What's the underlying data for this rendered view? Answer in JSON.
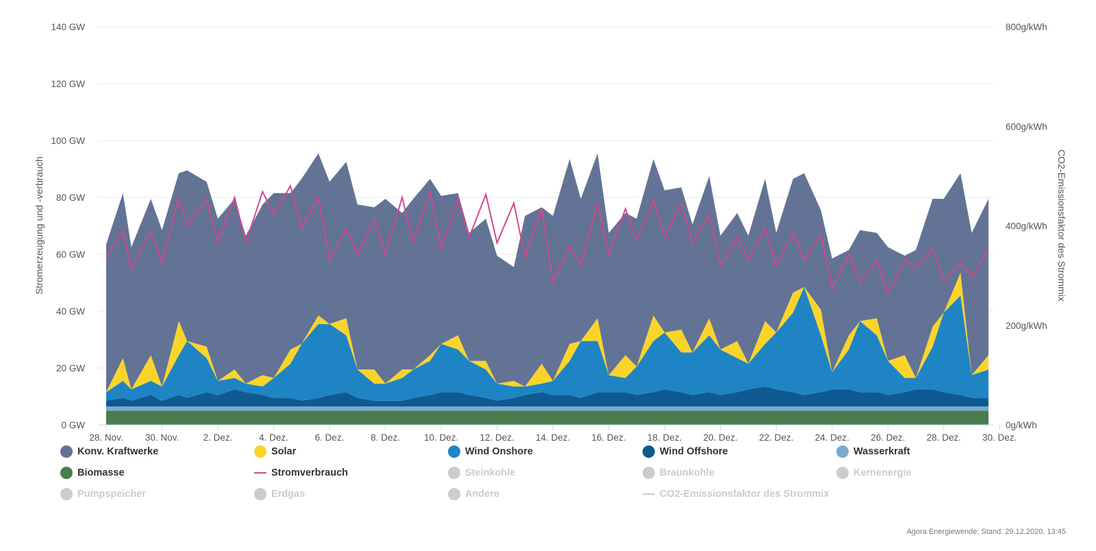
{
  "chart_data": {
    "type": "area",
    "title": "",
    "ylabel": "Stromerzeugung und -verbrauch",
    "ylabel_right": "CO2-Emissionsfaktor des Strommix",
    "ylim": [
      0,
      140
    ],
    "ylim_right": [
      0,
      800
    ],
    "yticks": [
      "0 GW",
      "20 GW",
      "40 GW",
      "60 GW",
      "80 GW",
      "100 GW",
      "120 GW",
      "140 GW"
    ],
    "yticks_right": [
      "0g/kWh",
      "200g/kWh",
      "400g/kWh",
      "600g/kWh",
      "800g/kWh"
    ],
    "grid": true,
    "legend_position": "bottom",
    "xticks": [
      "28. Nov.",
      "30. Nov.",
      "2. Dez.",
      "4. Dez.",
      "6. Dez.",
      "8. Dez.",
      "10. Dez.",
      "12. Dez.",
      "14. Dez.",
      "16. Dez.",
      "18. Dez.",
      "20. Dez.",
      "22. Dez.",
      "24. Dez.",
      "26. Dez.",
      "28. Dez.",
      "30. Dez."
    ],
    "x_units": "days since 28. Nov. 2020",
    "x_end": 31.6,
    "series_key_days": [
      0.0,
      0.6,
      0.9,
      1.6,
      2.0,
      2.6,
      2.9,
      3.6,
      4.0,
      4.6,
      5.0,
      5.6,
      6.0,
      6.6,
      7.0,
      7.6,
      8.0,
      8.6,
      9.0,
      9.6,
      10.0,
      10.6,
      11.0,
      11.6,
      12.0,
      12.6,
      13.0,
      13.6,
      14.0,
      14.6,
      15.0,
      15.6,
      16.0,
      16.6,
      17.0,
      17.6,
      18.0,
      18.6,
      19.0,
      19.6,
      20.0,
      20.6,
      21.0,
      21.6,
      22.0,
      22.6,
      23.0,
      23.6,
      24.0,
      24.6,
      25.0,
      25.6,
      26.0,
      26.6,
      27.0,
      27.6,
      28.0,
      28.6,
      29.0,
      29.6,
      30.0,
      30.6,
      31.0,
      31.6
    ],
    "series": [
      {
        "name": "Biomasse",
        "color": "#4a7c4e",
        "visible": true,
        "values": [
          5,
          5,
          5,
          5,
          5,
          5,
          5,
          5,
          5,
          5,
          5,
          5,
          5,
          5,
          5,
          5,
          5,
          5,
          5,
          5,
          5,
          5,
          5,
          5,
          5,
          5,
          5,
          5,
          5,
          5,
          5,
          5,
          5,
          5,
          5,
          5,
          5,
          5,
          5,
          5,
          5,
          5,
          5,
          5,
          5,
          5,
          5,
          5,
          5,
          5,
          5,
          5,
          5,
          5,
          5,
          5,
          5,
          5,
          5,
          5,
          5,
          5,
          5,
          5
        ]
      },
      {
        "name": "Wasserkraft",
        "color": "#7aa9cf",
        "visible": true,
        "values": [
          1.5,
          1.5,
          1.5,
          1.5,
          1.5,
          1.5,
          1.5,
          1.5,
          1.5,
          1.5,
          1.5,
          1.5,
          1.5,
          1.5,
          1.5,
          1.5,
          1.5,
          1.5,
          1.5,
          1.5,
          1.5,
          1.5,
          1.5,
          1.5,
          1.5,
          1.5,
          1.5,
          1.5,
          1.5,
          1.5,
          1.5,
          1.5,
          1.5,
          1.5,
          1.5,
          1.5,
          1.5,
          1.5,
          1.5,
          1.5,
          1.5,
          1.5,
          1.5,
          1.5,
          1.5,
          1.5,
          1.5,
          1.5,
          1.5,
          1.5,
          1.5,
          1.5,
          1.5,
          1.5,
          1.5,
          1.5,
          1.5,
          1.5,
          1.5,
          1.5,
          1.5,
          1.5,
          1.5,
          1.5
        ]
      },
      {
        "name": "Wind Offshore",
        "color": "#0e5a91",
        "visible": true,
        "values": [
          2,
          3,
          2,
          4,
          2,
          4,
          3,
          5,
          4,
          6,
          5,
          4,
          3,
          3,
          2,
          3,
          4,
          5,
          3,
          2,
          2,
          2,
          3,
          4,
          5,
          5,
          4,
          3,
          2,
          3,
          4,
          5,
          4,
          4,
          3,
          5,
          5,
          5,
          4,
          5,
          6,
          5,
          4,
          5,
          4,
          5,
          6,
          7,
          6,
          5,
          4,
          5,
          6,
          6,
          5,
          5,
          4,
          5,
          6,
          6,
          5,
          4,
          3,
          3
        ]
      },
      {
        "name": "Wind Onshore",
        "color": "#1f84c4",
        "visible": true,
        "values": [
          3,
          6,
          4,
          5,
          5,
          14,
          20,
          12,
          5,
          4,
          3,
          3,
          7,
          12,
          20,
          26,
          25,
          20,
          10,
          6,
          6,
          8,
          10,
          12,
          17,
          15,
          12,
          10,
          6,
          4,
          3,
          3,
          5,
          12,
          20,
          18,
          6,
          5,
          10,
          18,
          20,
          14,
          15,
          20,
          16,
          12,
          9,
          15,
          20,
          28,
          38,
          20,
          6,
          14,
          25,
          20,
          12,
          5,
          4,
          15,
          28,
          35,
          8,
          10
        ]
      },
      {
        "name": "Solar",
        "color": "#fbd42a",
        "visible": true,
        "values": [
          0,
          8,
          0,
          9,
          0,
          12,
          0,
          4,
          0,
          3,
          0,
          4,
          0,
          5,
          0,
          3,
          0,
          6,
          0,
          5,
          0,
          3,
          0,
          2,
          0,
          5,
          0,
          3,
          0,
          2,
          0,
          7,
          0,
          6,
          0,
          8,
          0,
          8,
          0,
          9,
          0,
          8,
          0,
          6,
          0,
          6,
          0,
          8,
          0,
          7,
          0,
          9,
          0,
          5,
          0,
          6,
          0,
          8,
          0,
          7,
          0,
          8,
          0,
          5
        ]
      },
      {
        "name": "Konv. Kraftwerke",
        "color": "#627395",
        "visible": true,
        "values": [
          52,
          58,
          50,
          55,
          55,
          52,
          60,
          58,
          57,
          60,
          52,
          60,
          65,
          55,
          58,
          57,
          50,
          55,
          58,
          57,
          65,
          55,
          60,
          62,
          52,
          50,
          45,
          50,
          45,
          40,
          60,
          55,
          58,
          65,
          50,
          58,
          50,
          50,
          52,
          55,
          50,
          50,
          45,
          50,
          40,
          45,
          45,
          50,
          35,
          40,
          40,
          35,
          40,
          30,
          32,
          30,
          40,
          35,
          45,
          45,
          40,
          35,
          50,
          55
        ]
      },
      {
        "name": "Stromverbrauch",
        "color": "#d1478c",
        "visible": true,
        "line": true,
        "values": [
          59,
          68,
          55,
          68,
          57,
          80,
          70,
          79,
          64,
          80,
          64,
          82,
          74,
          84,
          69,
          80,
          58,
          69,
          60,
          72,
          60,
          80,
          64,
          82,
          62,
          80,
          66,
          81,
          64,
          78,
          59,
          76,
          50,
          63,
          56,
          78,
          60,
          76,
          65,
          79,
          66,
          78,
          64,
          74,
          56,
          66,
          58,
          69,
          56,
          68,
          58,
          67,
          48,
          60,
          50,
          58,
          46,
          58,
          55,
          62,
          50,
          57,
          52,
          62
        ]
      },
      {
        "name": "Steinkohle",
        "color": "#cccccc",
        "visible": false
      },
      {
        "name": "Braunkohle",
        "color": "#cccccc",
        "visible": false
      },
      {
        "name": "Kernenergie",
        "color": "#cccccc",
        "visible": false
      },
      {
        "name": "Pumpspeicher",
        "color": "#cccccc",
        "visible": false
      },
      {
        "name": "Erdgas",
        "color": "#cccccc",
        "visible": false
      },
      {
        "name": "Andere",
        "color": "#cccccc",
        "visible": false
      },
      {
        "name": "CO2-Emissionsfaktor des Strommix",
        "color": "#cccccc",
        "visible": false,
        "line": true
      }
    ]
  },
  "legend": {
    "items": [
      {
        "label": "Konv. Kraftwerke",
        "color": "#627395",
        "kind": "dot",
        "active": true
      },
      {
        "label": "Solar",
        "color": "#fbd42a",
        "kind": "dot",
        "active": true
      },
      {
        "label": "Wind Onshore",
        "color": "#1f84c4",
        "kind": "dot",
        "active": true
      },
      {
        "label": "Wind Offshore",
        "color": "#0e5a91",
        "kind": "dot",
        "active": true
      },
      {
        "label": "Wasserkraft",
        "color": "#7aa9cf",
        "kind": "dot",
        "active": true
      },
      {
        "label": "Biomasse",
        "color": "#4a7c4e",
        "kind": "dot",
        "active": true
      },
      {
        "label": "Stromverbrauch",
        "color": "#d1478c",
        "kind": "line",
        "active": true
      },
      {
        "label": "Steinkohle",
        "color": "#cccccc",
        "kind": "dot",
        "active": false
      },
      {
        "label": "Braunkohle",
        "color": "#cccccc",
        "kind": "dot",
        "active": false
      },
      {
        "label": "Kernenergie",
        "color": "#cccccc",
        "kind": "dot",
        "active": false
      },
      {
        "label": "Pumpspeicher",
        "color": "#cccccc",
        "kind": "dot",
        "active": false
      },
      {
        "label": "Erdgas",
        "color": "#cccccc",
        "kind": "dot",
        "active": false
      },
      {
        "label": "Andere",
        "color": "#cccccc",
        "kind": "dot",
        "active": false
      },
      {
        "label": "CO2-Emissionsfaktor des Strommix",
        "color": "#cccccc",
        "kind": "line",
        "active": false
      }
    ]
  },
  "credit": "Agora Energiewende; Stand: 29.12.2020, 13:45"
}
